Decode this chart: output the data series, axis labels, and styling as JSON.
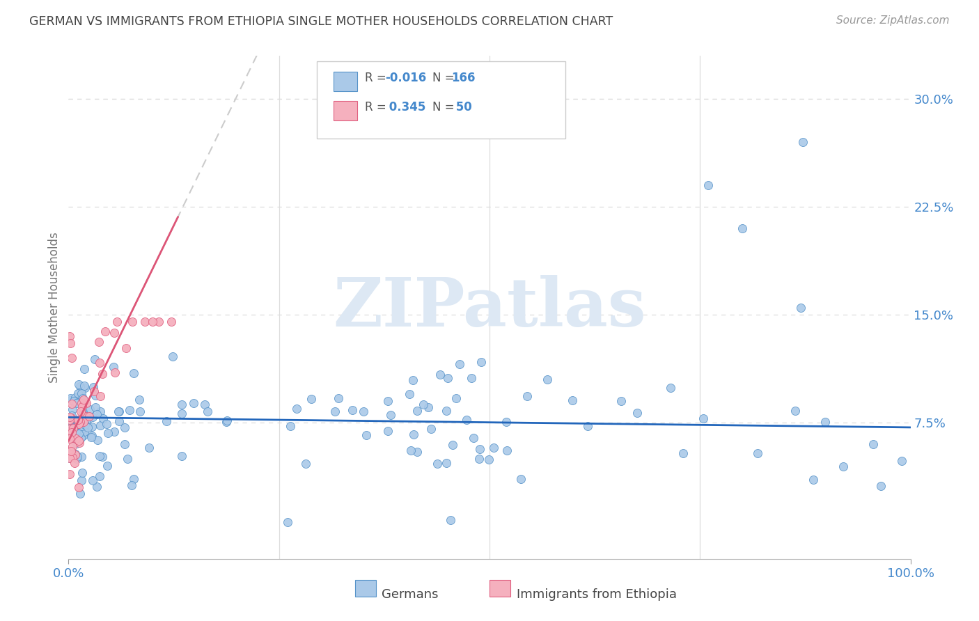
{
  "title": "GERMAN VS IMMIGRANTS FROM ETHIOPIA SINGLE MOTHER HOUSEHOLDS CORRELATION CHART",
  "source": "Source: ZipAtlas.com",
  "ylabel": "Single Mother Households",
  "xlim": [
    0.0,
    1.0
  ],
  "ylim": [
    -0.02,
    0.33
  ],
  "yticks": [
    0.075,
    0.15,
    0.225,
    0.3
  ],
  "yticklabels": [
    "7.5%",
    "15.0%",
    "22.5%",
    "30.0%"
  ],
  "xtick_left_label": "0.0%",
  "xtick_right_label": "100.0%",
  "legend_r_german": "-0.016",
  "legend_n_german": "166",
  "legend_r_ethiopia": "0.345",
  "legend_n_ethiopia": "50",
  "color_german_fill": "#aac9e8",
  "color_german_edge": "#5592c8",
  "color_ethiopia_fill": "#f5b0be",
  "color_ethiopia_edge": "#e06080",
  "trendline_german_color": "#2266bb",
  "trendline_ethiopia_solid_color": "#dd5577",
  "trendline_dashed_color": "#cccccc",
  "ytick_color": "#4488cc",
  "xtick_color": "#4488cc",
  "watermark_text": "ZIPatlas",
  "watermark_color": "#dde8f4",
  "background_color": "#ffffff",
  "grid_color": "#dddddd",
  "title_color": "#444444",
  "legend_text_color": "#4488cc",
  "legend_label_color": "#555555"
}
